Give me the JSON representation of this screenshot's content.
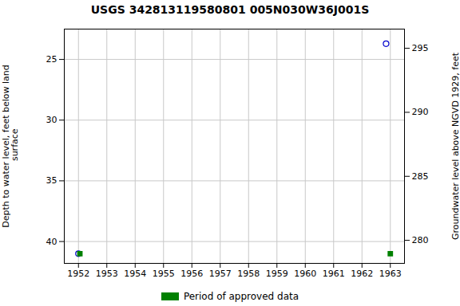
{
  "chart_data": {
    "type": "scatter",
    "title": "USGS 342813119580801 005N030W36J001S",
    "ylabel": "Depth to water level, feet below land\n surface",
    "y2label": "Groundwater level above NGVD 1929, feet",
    "x": [
      1952.0,
      1952.05,
      1962.85,
      1963.0
    ],
    "series": [
      {
        "color": "#0000cc",
        "marker": "circle",
        "values": [
          41.0,
          null,
          23.7,
          null
        ]
      },
      {
        "name": "Period of approved data",
        "color": "#008000",
        "marker": "square",
        "values": [
          null,
          41.0,
          null,
          41.0
        ]
      }
    ],
    "xlim": [
      1951.5,
      1963.5
    ],
    "xticks": [
      1952,
      1953,
      1954,
      1955,
      1956,
      1957,
      1958,
      1959,
      1960,
      1961,
      1962,
      1963
    ],
    "ylim": [
      41.8,
      22.5
    ],
    "yticks": [
      25,
      30,
      35,
      40
    ],
    "y2lim": [
      278.2,
      296.5
    ],
    "y2ticks": [
      280,
      285,
      290,
      295
    ],
    "grid": true,
    "legend": "bottom"
  }
}
